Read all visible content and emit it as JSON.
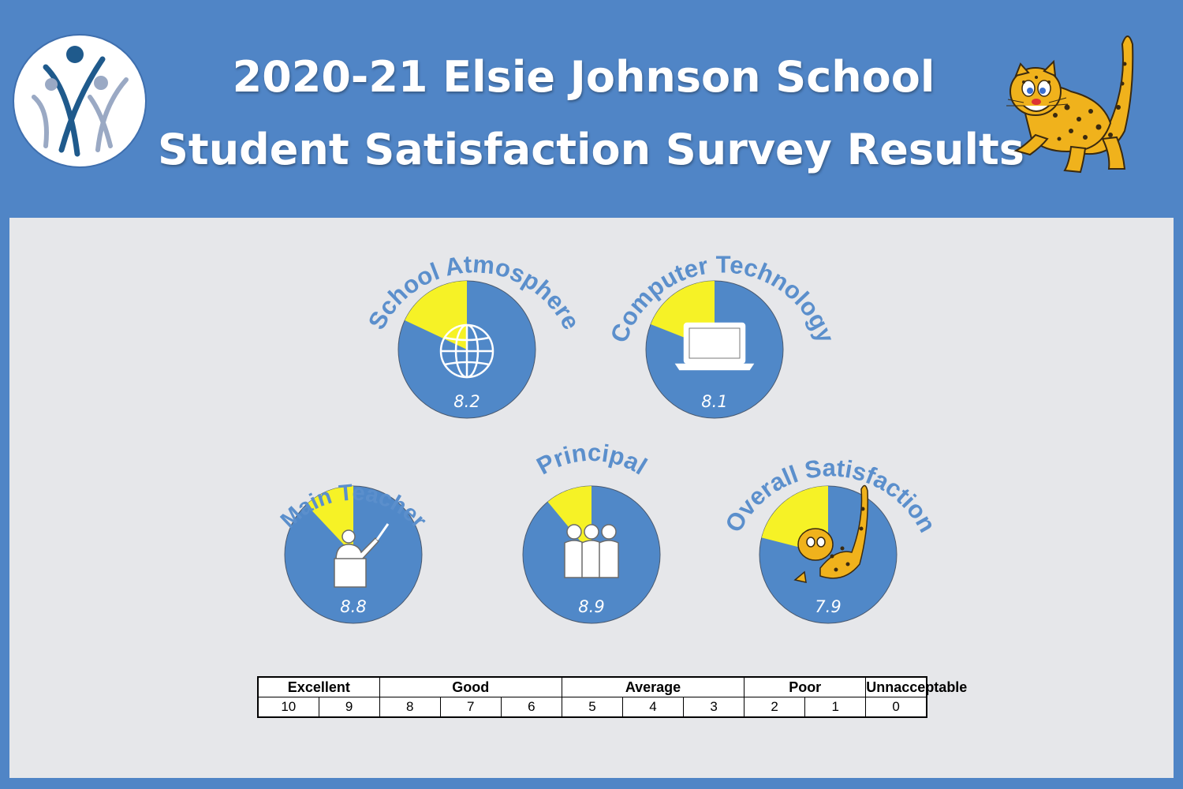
{
  "header": {
    "title_line1": "2020-21 Elsie Johnson School",
    "title_line2": "Student Satisfaction Survey Results"
  },
  "logo": {
    "icon": "district-people-logo-icon"
  },
  "mascot": {
    "icon": "jaguar-mascot-icon"
  },
  "colors": {
    "background": "#5085c6",
    "panel": "#e6e7ea",
    "pie_blue": "#5088c8",
    "pie_yellow": "#f6f226",
    "label_blue": "#5b8fcc",
    "value_text": "#ffffff"
  },
  "chart_data": {
    "type": "pie",
    "title": "Student Satisfaction Survey Results",
    "scale_max": 10,
    "items": [
      {
        "label": "School Atmosphere",
        "value": 8.2,
        "value_label": "8.2",
        "icon": "globe-icon"
      },
      {
        "label": "Computer Technology",
        "value": 8.1,
        "value_label": "8.1",
        "icon": "laptop-icon"
      },
      {
        "label": "Main Teacher",
        "value": 8.8,
        "value_label": "8.8",
        "icon": "teacher-icon"
      },
      {
        "label": "Principal",
        "value": 8.9,
        "value_label": "8.9",
        "icon": "group-icon"
      },
      {
        "label": "Overall Satisfaction",
        "value": 7.9,
        "value_label": "7.9",
        "icon": "jaguar-mascot-icon"
      }
    ]
  },
  "scale": {
    "categories": [
      "Excellent",
      "Good",
      "Average",
      "Poor",
      "Unnacceptable"
    ],
    "numbers": [
      "10",
      "9",
      "8",
      "7",
      "6",
      "5",
      "4",
      "3",
      "2",
      "1",
      "0"
    ]
  }
}
